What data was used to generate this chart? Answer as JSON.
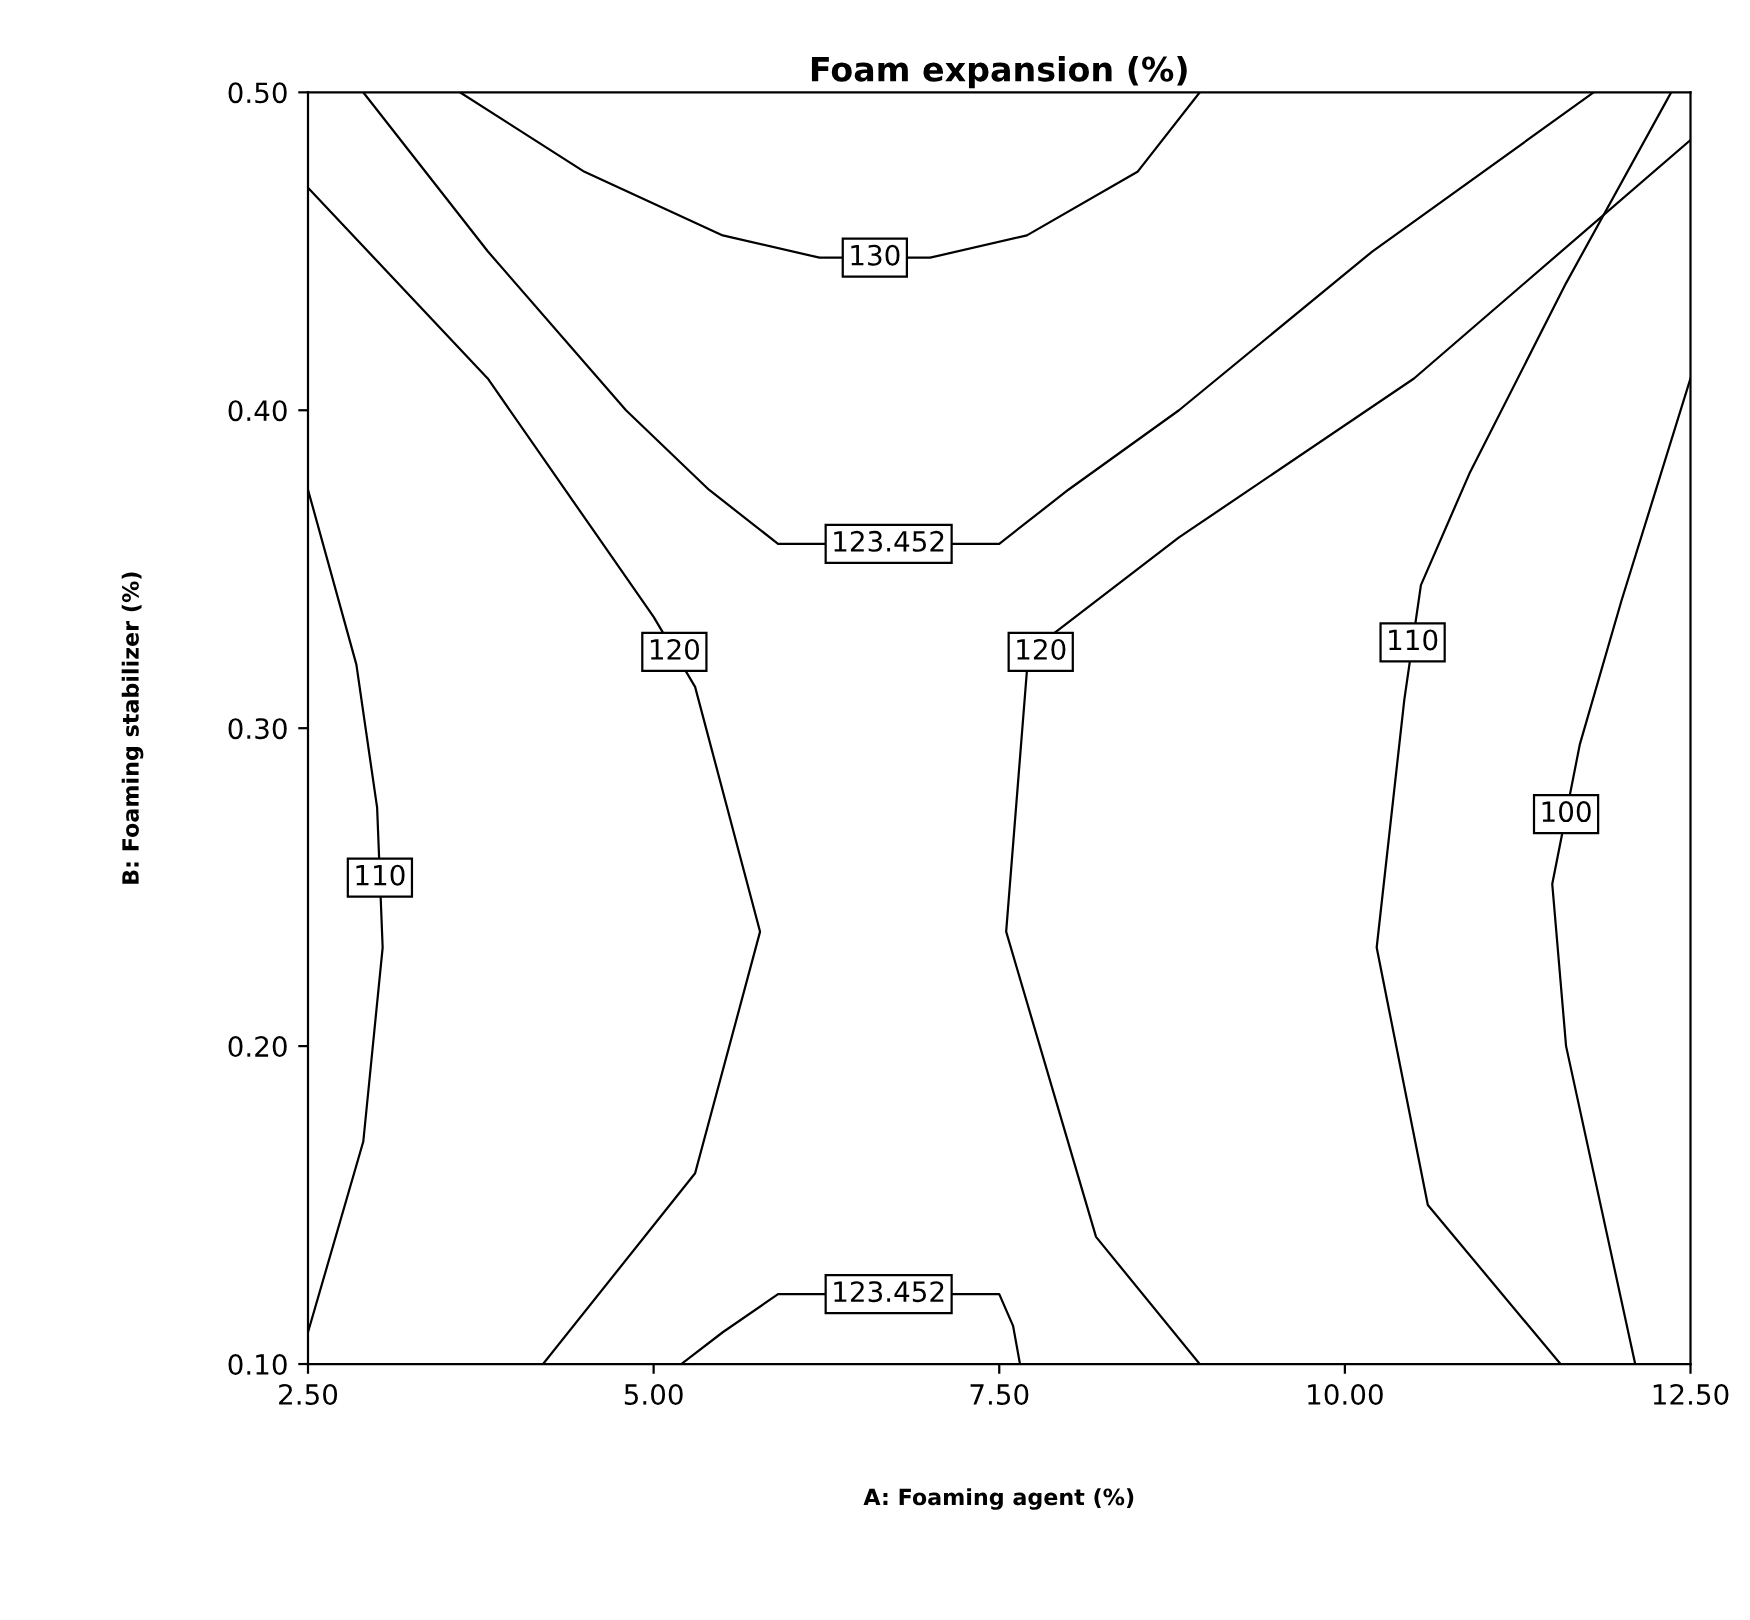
{
  "chart_data": {
    "type": "line",
    "title": "Foam expansion (%)",
    "xlabel": "A: Foaming agent (%)",
    "ylabel": "B: Foaming stabilizer (%)",
    "xlim": [
      2.5,
      12.5
    ],
    "ylim": [
      0.1,
      0.5
    ],
    "xticks": [
      {
        "value": 2.5,
        "label": "2.50"
      },
      {
        "value": 5,
        "label": "5.00"
      },
      {
        "value": 7.5,
        "label": "7.50"
      },
      {
        "value": 10,
        "label": "10.00"
      },
      {
        "value": 12.5,
        "label": "12.50"
      }
    ],
    "yticks": [
      {
        "value": 0.1,
        "label": "0.10"
      },
      {
        "value": 0.2,
        "label": "0.20"
      },
      {
        "value": 0.3,
        "label": "0.30"
      },
      {
        "value": 0.4,
        "label": "0.40"
      },
      {
        "value": 0.5,
        "label": "0.50"
      }
    ],
    "grid": false,
    "legend": false,
    "marker": "none",
    "series": [
      {
        "name": "130",
        "color": "#000000",
        "x": [
          3.6,
          4.5,
          5.5,
          6.2,
          7.0,
          7.7,
          8.5,
          8.95
        ],
        "values": [
          0.5,
          0.475,
          0.455,
          0.448,
          0.448,
          0.455,
          0.475,
          0.5
        ]
      },
      {
        "name": "123.452",
        "color": "#000000",
        "x": [
          2.9,
          3.8,
          4.8,
          5.4,
          5.9,
          7.5,
          8.0,
          8.8,
          10.2,
          11.8
        ],
        "values": [
          0.5,
          0.45,
          0.4,
          0.375,
          0.358,
          0.358,
          0.375,
          0.4,
          0.45,
          0.5
        ]
      },
      {
        "name": "123.452",
        "color": "#000000",
        "x": [
          5.2,
          5.5,
          5.9,
          7.5,
          7.6,
          7.65
        ],
        "values": [
          0.1,
          0.11,
          0.122,
          0.122,
          0.112,
          0.1
        ]
      },
      {
        "name": "120",
        "color": "#000000",
        "x": [
          2.5,
          3.8,
          4.6,
          5.0,
          5.3,
          5.77,
          5.3,
          4.2
        ],
        "values": [
          0.47,
          0.41,
          0.36,
          0.335,
          0.313,
          0.236,
          0.16,
          0.1
        ]
      },
      {
        "name": "120",
        "color": "#000000",
        "x": [
          12.5,
          10.5,
          8.8,
          7.9,
          7.7,
          7.55,
          8.2,
          8.95
        ],
        "values": [
          0.485,
          0.41,
          0.36,
          0.33,
          0.318,
          0.236,
          0.14,
          0.1
        ]
      },
      {
        "name": "110",
        "color": "#000000",
        "x": [
          2.5,
          2.85,
          3.0,
          3.04,
          2.9,
          2.5
        ],
        "values": [
          0.375,
          0.32,
          0.275,
          0.231,
          0.17,
          0.11
        ]
      },
      {
        "name": "110",
        "color": "#000000",
        "x": [
          12.36,
          11.6,
          10.9,
          10.55,
          10.43,
          10.23,
          10.6,
          11.56
        ],
        "values": [
          0.5,
          0.44,
          0.38,
          0.345,
          0.309,
          0.231,
          0.15,
          0.1
        ]
      },
      {
        "name": "100",
        "color": "#000000",
        "x": [
          12.5,
          12.0,
          11.7,
          11.5,
          11.6,
          12.1
        ],
        "values": [
          0.41,
          0.34,
          0.295,
          0.251,
          0.2,
          0.1
        ]
      }
    ]
  }
}
